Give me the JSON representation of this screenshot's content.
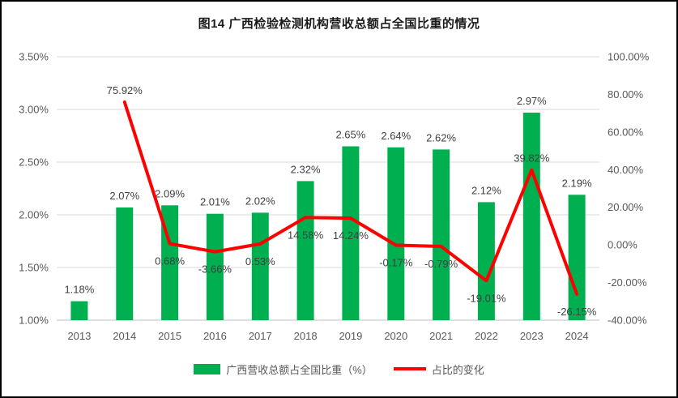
{
  "window": {
    "background": "#FFFFFF",
    "border_color": "#000000"
  },
  "chart_data": {
    "type": "bar",
    "subtype": "bar-line-combo",
    "title": "图14 广西检验检测机构营收总额占全国比重的情况",
    "categories": [
      "2013",
      "2014",
      "2015",
      "2016",
      "2017",
      "2018",
      "2019",
      "2020",
      "2021",
      "2022",
      "2023",
      "2024"
    ],
    "series": [
      {
        "name": "广西营收总额占全国比重（%）",
        "type": "bar",
        "axis": "left",
        "color": "#00B050",
        "values": [
          1.18,
          2.07,
          2.09,
          2.01,
          2.02,
          2.32,
          2.65,
          2.64,
          2.62,
          2.12,
          2.97,
          2.19
        ],
        "labels": [
          "1.18%",
          "2.07%",
          "2.09%",
          "2.01%",
          "2.02%",
          "2.32%",
          "2.65%",
          "2.64%",
          "2.62%",
          "2.12%",
          "2.97%",
          "2.19%"
        ]
      },
      {
        "name": "占比的变化",
        "type": "line",
        "axis": "right",
        "color": "#FF0000",
        "values": [
          null,
          75.92,
          0.68,
          -3.66,
          0.53,
          14.58,
          14.24,
          -0.17,
          -0.79,
          -19.01,
          39.82,
          -26.15
        ],
        "labels": [
          null,
          "75.92%",
          "0.68%",
          "-3.66%",
          "0.53%",
          "14.58%",
          "14.24%",
          "-0.17%",
          "-0.79%",
          "-19.01%",
          "39.82%",
          "-26.15%"
        ]
      }
    ],
    "left_axis": {
      "min": 1.0,
      "max": 3.5,
      "step": 0.5,
      "tick_labels": [
        "1.00%",
        "1.50%",
        "2.00%",
        "2.50%",
        "3.00%",
        "3.50%"
      ]
    },
    "right_axis": {
      "min": -40,
      "max": 100,
      "step": 20,
      "tick_labels": [
        "-40.00%",
        "-20.00%",
        "0.00%",
        "20.00%",
        "40.00%",
        "60.00%",
        "80.00%",
        "100.00%"
      ]
    },
    "grid": true,
    "legend_position": "bottom",
    "colors": {
      "gridline": "#D9D9D9",
      "axis_line": "#BFBFBF",
      "axis_text": "#595959",
      "data_label_text": "#404040",
      "title_text": "#1A1A1A"
    }
  },
  "legend": {
    "items": [
      {
        "label": "广西营收总额占全国比重（%）",
        "swatch": "bar",
        "color": "#00B050"
      },
      {
        "label": "占比的变化",
        "swatch": "line",
        "color": "#FF0000"
      }
    ]
  }
}
